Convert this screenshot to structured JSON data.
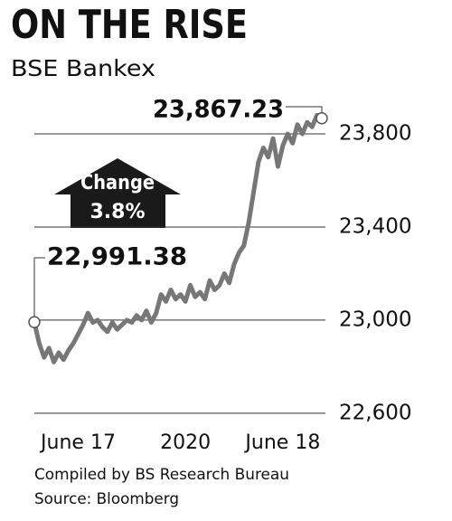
{
  "chart_data": {
    "type": "line",
    "title": "ON THE RISE",
    "subtitle": "BSE Bankex",
    "annotation": {
      "line1": "Change",
      "line2": "3.8%"
    },
    "categories": [
      null,
      null,
      null,
      null,
      null,
      null,
      null,
      null,
      null,
      "June 17",
      null,
      null,
      null,
      null,
      null,
      null,
      null,
      null,
      null,
      null,
      null,
      null,
      null,
      null,
      null,
      null,
      null,
      null,
      null,
      null,
      null,
      "2020",
      null,
      null,
      null,
      null,
      null,
      null,
      null,
      null,
      null,
      null,
      null,
      null,
      null,
      null,
      null,
      null,
      null,
      null,
      null,
      "June 18",
      null,
      null,
      null,
      null,
      null,
      null,
      null,
      null
    ],
    "series": [
      {
        "name": "BSE Bankex",
        "color": "#777777",
        "values": [
          22991.38,
          22900,
          22840,
          22880,
          22820,
          22860,
          22830,
          22870,
          22900,
          22940,
          22980,
          23030,
          22990,
          23000,
          22970,
          22950,
          22990,
          22960,
          22980,
          23000,
          22990,
          23020,
          23000,
          23040,
          22990,
          23030,
          23110,
          23080,
          23130,
          23090,
          23110,
          23080,
          23150,
          23100,
          23120,
          23090,
          23170,
          23130,
          23150,
          23200,
          23160,
          23240,
          23290,
          23320,
          23420,
          23550,
          23680,
          23740,
          23700,
          23780,
          23660,
          23750,
          23800,
          23760,
          23840,
          23800,
          23850,
          23830,
          23880,
          23867.23
        ],
        "value_labels": [
          "22,991.38",
          null,
          null,
          null,
          null,
          null,
          null,
          null,
          null,
          null,
          null,
          null,
          null,
          null,
          null,
          null,
          null,
          null,
          null,
          null,
          null,
          null,
          null,
          null,
          null,
          null,
          null,
          null,
          null,
          null,
          null,
          null,
          null,
          null,
          null,
          null,
          null,
          null,
          null,
          null,
          null,
          null,
          null,
          null,
          null,
          null,
          null,
          null,
          null,
          null,
          null,
          null,
          null,
          null,
          null,
          null,
          null,
          null,
          null,
          "23,867.23"
        ]
      }
    ],
    "ylim": [
      22580,
      23940
    ],
    "yticks": [
      {
        "value": 22600,
        "label": "22,600"
      },
      {
        "value": 23000,
        "label": "23,000"
      },
      {
        "value": 23400,
        "label": "23,400"
      },
      {
        "value": 23800,
        "label": "23,800"
      }
    ],
    "grid": true,
    "notes": [
      "Compiled by BS Research Bureau",
      "Source: Bloomberg"
    ]
  }
}
